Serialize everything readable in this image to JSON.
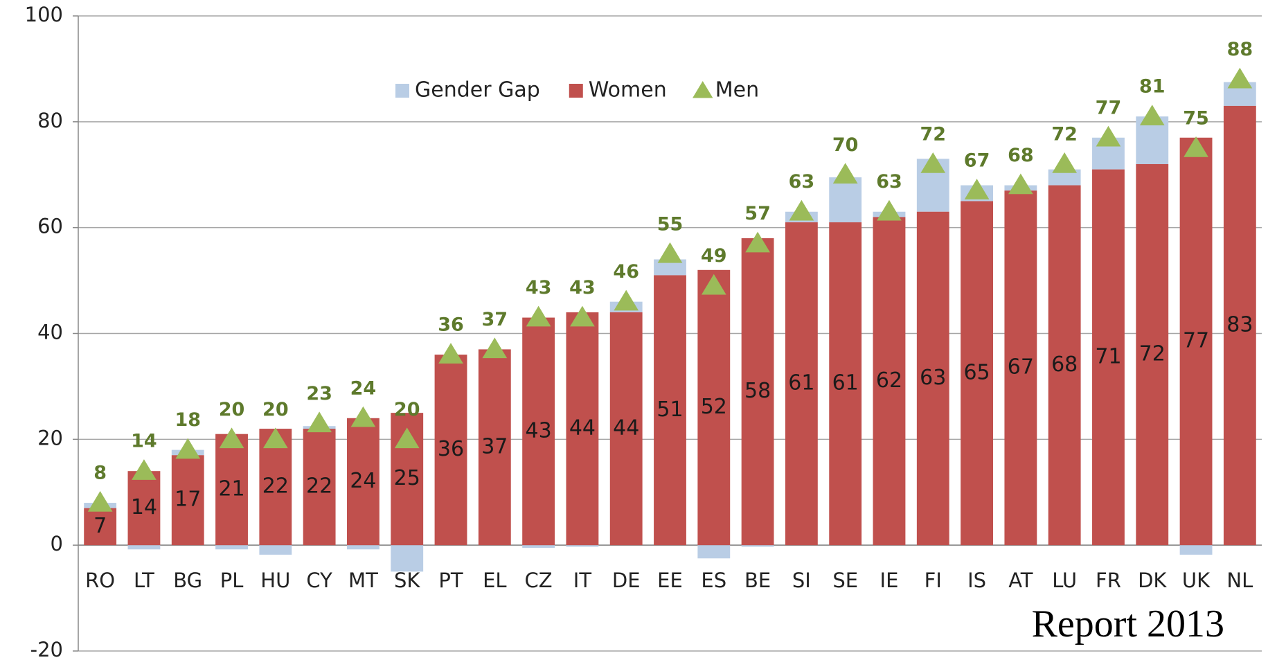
{
  "chart_data": {
    "type": "bar",
    "categories": [
      "RO",
      "LT",
      "BG",
      "PL",
      "HU",
      "CY",
      "MT",
      "SK",
      "PT",
      "EL",
      "CZ",
      "IT",
      "DE",
      "EE",
      "ES",
      "BE",
      "SI",
      "SE",
      "IE",
      "FI",
      "IS",
      "AT",
      "LU",
      "FR",
      "DK",
      "UK",
      "NL"
    ],
    "series": [
      {
        "name": "Gender Gap",
        "color": "#b9cde5",
        "stack_on": 1,
        "values": [
          1,
          -0.8,
          1,
          -0.8,
          -1.8,
          0.5,
          -0.8,
          -5,
          0,
          0,
          -0.5,
          -0.3,
          2,
          3,
          -2.5,
          -0.3,
          2,
          8.5,
          1,
          10,
          3,
          1,
          3,
          6,
          9,
          -1.8,
          4.5
        ]
      },
      {
        "name": "Women",
        "color": "#c0504d",
        "values": [
          7,
          14,
          17,
          21,
          22,
          22,
          24,
          25,
          36,
          37,
          43,
          44,
          44,
          51,
          52,
          58,
          61,
          61,
          62,
          63,
          65,
          67,
          68,
          71,
          72,
          77,
          83
        ]
      },
      {
        "name": "Men",
        "color": "#9bbb59",
        "marker": "triangle",
        "values": [
          8,
          14,
          18,
          20,
          20,
          23,
          24,
          20,
          36,
          37,
          43,
          43,
          46,
          55,
          49,
          57,
          63,
          70,
          63,
          72,
          67,
          68,
          72,
          77,
          81,
          75,
          88
        ]
      }
    ],
    "ylim": [
      -20,
      100
    ],
    "yticks": [
      -20,
      0,
      20,
      40,
      60,
      80,
      100
    ],
    "grid": true,
    "legend": "top",
    "annotation": "Report 2013"
  }
}
